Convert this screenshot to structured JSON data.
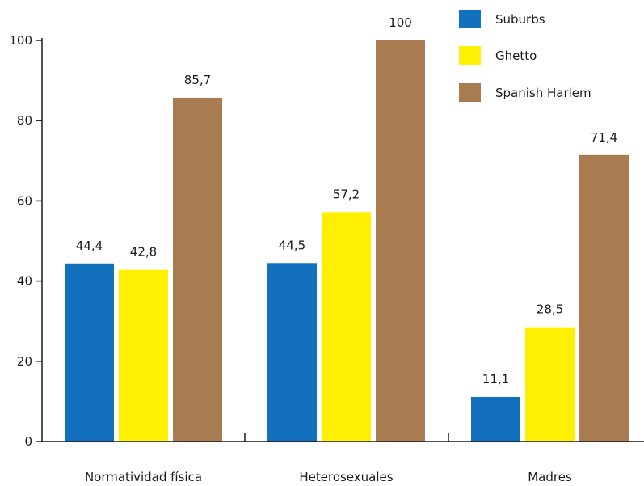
{
  "chart_data": {
    "type": "bar",
    "title": "",
    "xlabel": "",
    "ylabel": "",
    "ylim": [
      0,
      100
    ],
    "yticks": [
      0,
      20,
      40,
      60,
      80,
      100
    ],
    "grid": false,
    "legend_position": "top-right",
    "categories": [
      "Normatividad física",
      "Heterosexuales",
      "Madres"
    ],
    "series": [
      {
        "name": "Suburbs",
        "color": "#1270bd",
        "values": [
          44.4,
          44.5,
          11.1
        ],
        "labels": [
          "44,4",
          "44,5",
          "11,1"
        ]
      },
      {
        "name": "Ghetto",
        "color": "#ffef00",
        "values": [
          42.8,
          57.2,
          28.5
        ],
        "labels": [
          "42,8",
          "57,2",
          "28,5"
        ]
      },
      {
        "name": "Spanish Harlem",
        "color": "#a87c50",
        "values": [
          85.7,
          100,
          71.4
        ],
        "labels": [
          "85,7",
          "100",
          "71,4"
        ]
      }
    ]
  }
}
